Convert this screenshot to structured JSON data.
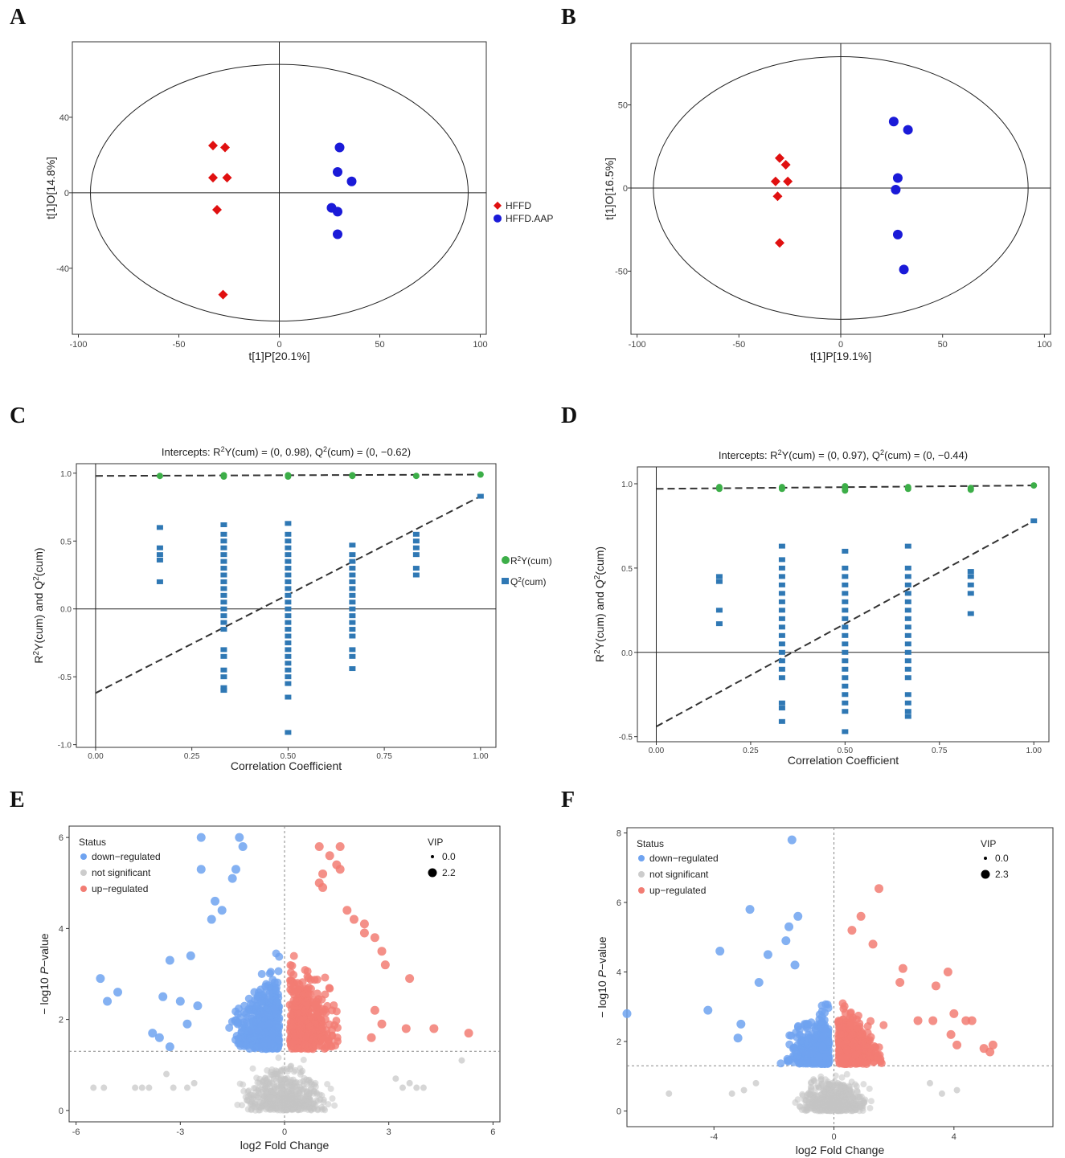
{
  "panels": {
    "A": "A",
    "B": "B",
    "C": "C",
    "D": "D",
    "E": "E",
    "F": "F"
  },
  "chart_data": [
    {
      "id": "A",
      "type": "scatter",
      "xlabel": "t[1]P[20.1%]",
      "ylabel": "t[1]O[14.8%]",
      "xlim": [
        -103,
        103
      ],
      "ylim": [
        -75,
        80
      ],
      "xticks": [
        -100,
        -50,
        0,
        50,
        100
      ],
      "yticks": [
        -40,
        0,
        40
      ],
      "ellipse": {
        "rx": 94,
        "ry": 68
      },
      "legend": [
        {
          "name": "HFFD",
          "color": "#e01010",
          "shape": "diamond"
        },
        {
          "name": "HFFD.AAP",
          "color": "#1a1ad8",
          "shape": "circle"
        }
      ],
      "series": [
        {
          "name": "HFFD",
          "color": "#e01010",
          "shape": "diamond",
          "points": [
            [
              -33,
              25
            ],
            [
              -27,
              24
            ],
            [
              -33,
              8
            ],
            [
              -26,
              8
            ],
            [
              -31,
              -9
            ],
            [
              -28,
              -54
            ]
          ]
        },
        {
          "name": "HFFD.AAP",
          "color": "#1a1ad8",
          "shape": "circle",
          "points": [
            [
              30,
              24
            ],
            [
              29,
              11
            ],
            [
              36,
              6
            ],
            [
              26,
              -8
            ],
            [
              29,
              -10
            ],
            [
              29,
              -22
            ]
          ]
        }
      ]
    },
    {
      "id": "B",
      "type": "scatter",
      "xlabel": "t[1]P[19.1%]",
      "ylabel": "t[1]O[16.5%]",
      "xlim": [
        -103,
        103
      ],
      "ylim": [
        -88,
        87
      ],
      "xticks": [
        -100,
        -50,
        0,
        50,
        100
      ],
      "yticks": [
        -50,
        0,
        50
      ],
      "ellipse": {
        "rx": 92,
        "ry": 79
      },
      "series": [
        {
          "name": "HFFD",
          "color": "#e01010",
          "shape": "diamond",
          "points": [
            [
              -30,
              18
            ],
            [
              -27,
              14
            ],
            [
              -32,
              4
            ],
            [
              -26,
              4
            ],
            [
              -31,
              -5
            ],
            [
              -30,
              -33
            ]
          ]
        },
        {
          "name": "HFFD.AAP",
          "color": "#1a1ad8",
          "shape": "circle",
          "points": [
            [
              26,
              40
            ],
            [
              33,
              35
            ],
            [
              28,
              6
            ],
            [
              27,
              -1
            ],
            [
              28,
              -28
            ],
            [
              31,
              -49
            ]
          ]
        }
      ]
    },
    {
      "id": "C",
      "type": "scatter",
      "title": "Intercepts: R2Y(cum) = (0, 0.98), Q2(cum) = (0, −0.62)",
      "title_parts": [
        "Intercepts: R",
        "2",
        "Y(cum) = (0, 0.98), Q",
        "2",
        "(cum) = (0, −0.62)"
      ],
      "xlabel": "Correlation Coefficient",
      "ylabel_parts": [
        "R",
        "2",
        "Y(cum) and Q",
        "2",
        "(cum)"
      ],
      "xlim": [
        -0.05,
        1.04
      ],
      "ylim": [
        -1.02,
        1.07
      ],
      "xticks": [
        "0.00",
        "0.25",
        "0.50",
        "0.75",
        "1.00"
      ],
      "yticks": [
        "-1.0",
        "-0.5",
        "0.0",
        "0.5",
        "1.0"
      ],
      "legend": [
        {
          "name_parts": [
            "R",
            "2",
            "Y(cum)"
          ],
          "color": "#3cae48",
          "shape": "circle"
        },
        {
          "name_parts": [
            "Q",
            "2",
            "(cum)"
          ],
          "color": "#2f78b4",
          "shape": "square"
        }
      ],
      "r2_line": [
        [
          0,
          0.98
        ],
        [
          1,
          0.99
        ]
      ],
      "q2_line": [
        [
          0,
          -0.62
        ],
        [
          1,
          0.83
        ]
      ],
      "r2_points": [
        [
          0.167,
          0.98
        ],
        [
          0.333,
          0.975
        ],
        [
          0.333,
          0.985
        ],
        [
          0.5,
          0.975
        ],
        [
          0.5,
          0.985
        ],
        [
          0.667,
          0.98
        ],
        [
          0.667,
          0.985
        ],
        [
          0.833,
          0.98
        ],
        [
          1.0,
          0.99
        ]
      ],
      "q2_columns": [
        {
          "x": 0.167,
          "values": [
            0.6,
            0.45,
            0.4,
            0.36,
            0.2
          ]
        },
        {
          "x": 0.333,
          "values": [
            0.62,
            0.55,
            0.5,
            0.45,
            0.4,
            0.35,
            0.3,
            0.25,
            0.2,
            0.15,
            0.1,
            0.05,
            0.0,
            -0.05,
            -0.1,
            -0.15,
            -0.3,
            -0.35,
            -0.45,
            -0.5,
            -0.58,
            -0.6
          ]
        },
        {
          "x": 0.5,
          "values": [
            0.63,
            0.55,
            0.5,
            0.45,
            0.4,
            0.35,
            0.3,
            0.25,
            0.2,
            0.15,
            0.1,
            0.05,
            0.0,
            -0.05,
            -0.1,
            -0.15,
            -0.2,
            -0.25,
            -0.3,
            -0.35,
            -0.4,
            -0.45,
            -0.5,
            -0.55,
            -0.65,
            -0.91
          ]
        },
        {
          "x": 0.667,
          "values": [
            0.47,
            0.4,
            0.35,
            0.3,
            0.25,
            0.2,
            0.15,
            0.1,
            0.05,
            0.0,
            -0.05,
            -0.1,
            -0.15,
            -0.2,
            -0.3,
            -0.35,
            -0.44
          ]
        },
        {
          "x": 0.833,
          "values": [
            0.55,
            0.5,
            0.45,
            0.4,
            0.3,
            0.25
          ]
        },
        {
          "x": 1.0,
          "values": [
            0.83
          ]
        }
      ]
    },
    {
      "id": "D",
      "type": "scatter",
      "title": "Intercepts: R2Y(cum) = (0, 0.97), Q2(cum) = (0, −0.44)",
      "title_parts": [
        "Intercepts: R",
        "2",
        "Y(cum) = (0, 0.97), Q",
        "2",
        "(cum) = (0, −0.44)"
      ],
      "xlabel": "Correlation Coefficient",
      "ylabel_parts": [
        "R",
        "2",
        "Y(cum) and Q",
        "2",
        "(cum)"
      ],
      "xlim": [
        -0.05,
        1.04
      ],
      "ylim": [
        -0.53,
        1.1
      ],
      "xticks": [
        "0.00",
        "0.25",
        "0.50",
        "0.75",
        "1.00"
      ],
      "yticks": [
        "-0.5",
        "0.0",
        "0.5",
        "1.0"
      ],
      "r2_line": [
        [
          0,
          0.97
        ],
        [
          1,
          0.99
        ]
      ],
      "q2_line": [
        [
          0,
          -0.44
        ],
        [
          1,
          0.78
        ]
      ],
      "r2_points": [
        [
          0.167,
          0.97
        ],
        [
          0.167,
          0.98
        ],
        [
          0.333,
          0.97
        ],
        [
          0.333,
          0.98
        ],
        [
          0.5,
          0.96
        ],
        [
          0.5,
          0.975
        ],
        [
          0.5,
          0.985
        ],
        [
          0.667,
          0.97
        ],
        [
          0.667,
          0.98
        ],
        [
          0.833,
          0.965
        ],
        [
          0.833,
          0.975
        ],
        [
          1.0,
          0.99
        ]
      ],
      "q2_columns": [
        {
          "x": 0.167,
          "values": [
            0.45,
            0.42,
            0.25,
            0.17
          ]
        },
        {
          "x": 0.333,
          "values": [
            0.63,
            0.55,
            0.5,
            0.45,
            0.4,
            0.35,
            0.3,
            0.25,
            0.2,
            0.15,
            0.1,
            0.05,
            0.0,
            -0.05,
            -0.1,
            -0.15,
            -0.3,
            -0.33,
            -0.41
          ]
        },
        {
          "x": 0.5,
          "values": [
            0.6,
            0.5,
            0.45,
            0.4,
            0.35,
            0.3,
            0.25,
            0.2,
            0.15,
            0.1,
            0.05,
            0.0,
            -0.05,
            -0.1,
            -0.15,
            -0.2,
            -0.25,
            -0.3,
            -0.35,
            -0.47
          ]
        },
        {
          "x": 0.667,
          "values": [
            0.63,
            0.5,
            0.45,
            0.4,
            0.35,
            0.3,
            0.25,
            0.2,
            0.15,
            0.1,
            0.05,
            0.0,
            -0.05,
            -0.1,
            -0.15,
            -0.25,
            -0.3,
            -0.35,
            -0.38
          ]
        },
        {
          "x": 0.833,
          "values": [
            0.48,
            0.45,
            0.4,
            0.35,
            0.23
          ]
        },
        {
          "x": 1.0,
          "values": [
            0.78
          ]
        }
      ]
    },
    {
      "id": "E",
      "type": "scatter",
      "subtype": "volcano",
      "xlabel": "log2 Fold Change",
      "ylabel_parts": [
        "− log10 ",
        "P",
        "−value"
      ],
      "xlim": [
        -6.2,
        6.2
      ],
      "ylim": [
        -0.25,
        6.25
      ],
      "xticks": [
        -6,
        -3,
        0,
        3,
        6
      ],
      "yticks": [
        0,
        2,
        4,
        6
      ],
      "threshold_y": 1.3,
      "legend_title": "Status",
      "legend": [
        {
          "name": "down−regulated",
          "color": "#6fa3f0"
        },
        {
          "name": "not significant",
          "color": "#cccccc"
        },
        {
          "name": "up−regulated",
          "color": "#f27c73"
        }
      ],
      "size_title": "VIP",
      "size_values": [
        "0.0",
        "2.2"
      ],
      "colors": {
        "down": "#6fa3f0",
        "ns": "#c4c4c4",
        "up": "#f27c73"
      },
      "points": {
        "down": [
          [
            -5.3,
            2.9
          ],
          [
            -5.1,
            2.4
          ],
          [
            -4.8,
            2.6
          ],
          [
            -3.3,
            3.3
          ],
          [
            -3.5,
            2.5
          ],
          [
            -3.0,
            2.4
          ],
          [
            -3.8,
            1.7
          ],
          [
            -3.6,
            1.6
          ],
          [
            -3.3,
            1.4
          ],
          [
            -2.4,
            6.0
          ],
          [
            -1.3,
            6.0
          ],
          [
            -1.2,
            5.8
          ],
          [
            -2.4,
            5.3
          ],
          [
            -1.4,
            5.3
          ],
          [
            -1.5,
            5.1
          ],
          [
            -2.0,
            4.6
          ],
          [
            -1.8,
            4.4
          ],
          [
            -2.1,
            4.2
          ],
          [
            -2.7,
            3.4
          ],
          [
            -2.5,
            2.3
          ],
          [
            -2.8,
            1.9
          ]
        ],
        "up": [
          [
            1.0,
            5.8
          ],
          [
            1.6,
            5.8
          ],
          [
            1.3,
            5.6
          ],
          [
            1.5,
            5.4
          ],
          [
            1.6,
            5.3
          ],
          [
            1.1,
            5.2
          ],
          [
            1.0,
            5.0
          ],
          [
            1.1,
            4.9
          ],
          [
            1.8,
            4.4
          ],
          [
            2.0,
            4.2
          ],
          [
            2.3,
            4.1
          ],
          [
            2.3,
            3.9
          ],
          [
            2.6,
            3.8
          ],
          [
            2.8,
            3.5
          ],
          [
            2.9,
            3.2
          ],
          [
            3.6,
            2.9
          ],
          [
            4.3,
            1.8
          ],
          [
            5.3,
            1.7
          ],
          [
            3.5,
            1.8
          ],
          [
            2.6,
            2.2
          ],
          [
            2.8,
            1.9
          ],
          [
            2.5,
            1.6
          ]
        ],
        "ns": [
          [
            -5.5,
            0.5
          ],
          [
            -5.2,
            0.5
          ],
          [
            -4.1,
            0.5
          ],
          [
            -3.9,
            0.5
          ],
          [
            -3.2,
            0.5
          ],
          [
            -2.8,
            0.5
          ],
          [
            -2.6,
            0.6
          ],
          [
            -3.4,
            0.8
          ],
          [
            -4.3,
            0.5
          ],
          [
            3.4,
            0.5
          ],
          [
            3.8,
            0.5
          ],
          [
            4.0,
            0.5
          ],
          [
            5.1,
            1.1
          ],
          [
            3.2,
            0.7
          ],
          [
            3.6,
            0.6
          ]
        ]
      }
    },
    {
      "id": "F",
      "type": "scatter",
      "subtype": "volcano",
      "xlabel": "log2 Fold Change",
      "ylabel_parts": [
        "− log10 ",
        "P",
        "−value"
      ],
      "xlim": [
        -6.9,
        7.3
      ],
      "ylim": [
        -0.45,
        8.15
      ],
      "xticks": [
        -4,
        0,
        4
      ],
      "yticks": [
        0,
        2,
        4,
        6,
        8
      ],
      "threshold_y": 1.3,
      "legend_title": "Status",
      "legend": [
        {
          "name": "down−regulated",
          "color": "#6fa3f0"
        },
        {
          "name": "not significant",
          "color": "#cccccc"
        },
        {
          "name": "up−regulated",
          "color": "#f27c73"
        }
      ],
      "size_title": "VIP",
      "size_values": [
        "0.0",
        "2.3"
      ],
      "colors": {
        "down": "#6fa3f0",
        "ns": "#c4c4c4",
        "up": "#f27c73"
      },
      "points": {
        "down": [
          [
            -6.9,
            2.8
          ],
          [
            -4.2,
            2.9
          ],
          [
            -3.8,
            4.6
          ],
          [
            -3.1,
            2.5
          ],
          [
            -3.2,
            2.1
          ],
          [
            -2.8,
            5.8
          ],
          [
            -2.2,
            4.5
          ],
          [
            -2.5,
            3.7
          ],
          [
            -1.4,
            7.8
          ],
          [
            -1.2,
            5.6
          ],
          [
            -1.5,
            5.3
          ],
          [
            -1.6,
            4.9
          ],
          [
            -1.3,
            4.2
          ]
        ],
        "up": [
          [
            5.3,
            1.9
          ],
          [
            5.2,
            1.7
          ],
          [
            5.0,
            1.8
          ],
          [
            4.6,
            2.6
          ],
          [
            4.4,
            2.6
          ],
          [
            4.0,
            2.8
          ],
          [
            3.8,
            4.0
          ],
          [
            3.4,
            3.6
          ],
          [
            3.9,
            2.2
          ],
          [
            4.1,
            1.9
          ],
          [
            2.3,
            4.1
          ],
          [
            2.2,
            3.7
          ],
          [
            1.5,
            6.4
          ],
          [
            0.9,
            5.6
          ],
          [
            0.6,
            5.2
          ],
          [
            1.3,
            4.8
          ],
          [
            3.3,
            2.6
          ],
          [
            2.8,
            2.6
          ]
        ],
        "ns": [
          [
            -5.5,
            0.5
          ],
          [
            -3.4,
            0.5
          ],
          [
            -3.0,
            0.6
          ],
          [
            -2.6,
            0.8
          ],
          [
            3.6,
            0.5
          ],
          [
            4.1,
            0.6
          ],
          [
            3.2,
            0.8
          ]
        ]
      }
    }
  ]
}
